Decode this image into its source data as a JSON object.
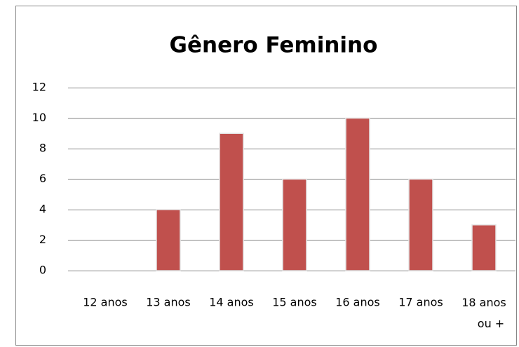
{
  "chart_data": {
    "type": "bar",
    "title": "Gênero Feminino",
    "categories": [
      "12 anos",
      "13 anos",
      "14 anos",
      "15 anos",
      "16 anos",
      "17 anos",
      "18 anos ou +"
    ],
    "values": [
      0,
      4,
      9,
      6,
      10,
      6,
      3
    ],
    "color": "#c0504d",
    "ylim": [
      0,
      12
    ],
    "yticks": [
      0,
      2,
      4,
      6,
      8,
      10,
      12
    ],
    "grid": true
  }
}
